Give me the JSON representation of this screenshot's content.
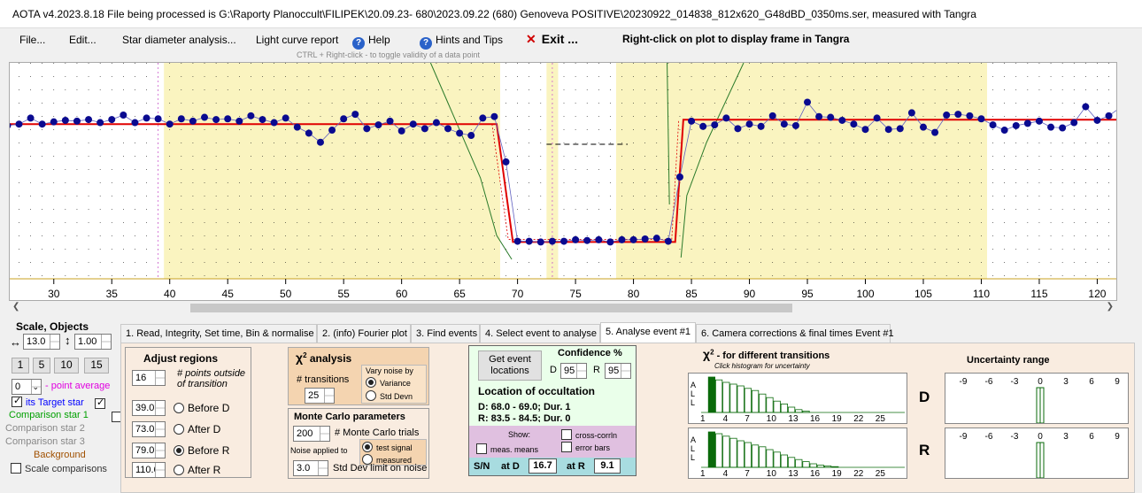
{
  "window": {
    "title": "AOTA v4.2023.8.18    File being processed is G:\\Raporty Planoccult\\FILIPEK\\20.09.23- 680\\2023.09.22 (680) Genoveva POSITIVE\\20230922_014838_812x620_G48dBD_0350ms.ser, measured with Tangra"
  },
  "menu": {
    "file": "File...",
    "edit": "Edit...",
    "star_diameter": "Star diameter analysis...",
    "light_curve": "Light curve report",
    "help": "Help",
    "hints": "Hints and Tips",
    "exit": "Exit ...",
    "right_click_hint": "Right-click on plot to display frame in Tangra",
    "ctrl_hint": "CTRL + Right-click   - to toggle validity of a data point"
  },
  "plot": {
    "x_ticks": [
      30,
      35,
      40,
      45,
      50,
      55,
      60,
      65,
      70,
      75,
      80,
      85,
      90,
      95,
      100,
      105,
      110,
      115,
      120
    ],
    "x_min": 26.2,
    "x_max": 121.8,
    "points": [
      [
        26,
        0.62
      ],
      [
        27,
        0.6
      ],
      [
        28,
        0.52
      ],
      [
        29,
        0.6
      ],
      [
        30,
        0.57
      ],
      [
        31,
        0.55
      ],
      [
        32,
        0.56
      ],
      [
        33,
        0.54
      ],
      [
        34,
        0.58
      ],
      [
        35,
        0.54
      ],
      [
        36,
        0.48
      ],
      [
        37,
        0.58
      ],
      [
        38,
        0.52
      ],
      [
        39,
        0.53
      ],
      [
        40,
        0.6
      ],
      [
        41,
        0.53
      ],
      [
        42,
        0.56
      ],
      [
        43,
        0.51
      ],
      [
        44,
        0.54
      ],
      [
        45,
        0.53
      ],
      [
        46,
        0.56
      ],
      [
        47,
        0.49
      ],
      [
        48,
        0.54
      ],
      [
        49,
        0.58
      ],
      [
        50,
        0.52
      ],
      [
        51,
        0.64
      ],
      [
        52,
        0.72
      ],
      [
        53,
        0.84
      ],
      [
        54,
        0.68
      ],
      [
        55,
        0.53
      ],
      [
        56,
        0.47
      ],
      [
        57,
        0.66
      ],
      [
        58,
        0.61
      ],
      [
        59,
        0.56
      ],
      [
        60,
        0.69
      ],
      [
        61,
        0.6
      ],
      [
        62,
        0.66
      ],
      [
        63,
        0.58
      ],
      [
        64,
        0.66
      ],
      [
        65,
        0.72
      ],
      [
        66,
        0.75
      ],
      [
        67,
        0.52
      ],
      [
        68,
        0.5
      ],
      [
        69,
        1.1
      ],
      [
        70,
        2.15
      ],
      [
        71,
        2.15
      ],
      [
        72,
        2.16
      ],
      [
        73,
        2.15
      ],
      [
        74,
        2.15
      ],
      [
        75,
        2.13
      ],
      [
        76,
        2.14
      ],
      [
        77,
        2.13
      ],
      [
        78,
        2.16
      ],
      [
        79,
        2.13
      ],
      [
        80,
        2.13
      ],
      [
        81,
        2.12
      ],
      [
        82,
        2.11
      ],
      [
        83,
        2.15
      ],
      [
        84,
        1.3
      ],
      [
        85,
        0.56
      ],
      [
        86,
        0.63
      ],
      [
        87,
        0.61
      ],
      [
        88,
        0.52
      ],
      [
        89,
        0.66
      ],
      [
        90,
        0.6
      ],
      [
        91,
        0.63
      ],
      [
        92,
        0.49
      ],
      [
        93,
        0.6
      ],
      [
        94,
        0.62
      ],
      [
        95,
        0.31
      ],
      [
        96,
        0.5
      ],
      [
        97,
        0.51
      ],
      [
        98,
        0.55
      ],
      [
        99,
        0.6
      ],
      [
        100,
        0.67
      ],
      [
        101,
        0.52
      ],
      [
        102,
        0.67
      ],
      [
        103,
        0.66
      ],
      [
        104,
        0.45
      ],
      [
        105,
        0.64
      ],
      [
        106,
        0.71
      ],
      [
        107,
        0.48
      ],
      [
        108,
        0.47
      ],
      [
        109,
        0.49
      ],
      [
        110,
        0.53
      ],
      [
        111,
        0.61
      ],
      [
        112,
        0.68
      ],
      [
        113,
        0.62
      ],
      [
        114,
        0.59
      ],
      [
        115,
        0.56
      ],
      [
        116,
        0.64
      ],
      [
        117,
        0.65
      ],
      [
        118,
        0.58
      ],
      [
        119,
        0.37
      ],
      [
        120,
        0.55
      ],
      [
        121,
        0.49
      ],
      [
        122,
        0.38
      ]
    ]
  },
  "tabs": [
    "1.  Read, Integrity, Set time, Bin & normalise",
    "2. (info)  Fourier plot",
    "3. Find events",
    "4. Select event to analyse",
    "5. Analyse event #1",
    "6. Camera corrections & final times Event #1"
  ],
  "left": {
    "scale_title": "Scale,  Objects",
    "scale_x": "13.0",
    "scale_y": "1.00",
    "zoom_buttons": [
      "1",
      "5",
      "10",
      "15"
    ],
    "point_avg_value": "0",
    "point_avg_label": "- point average",
    "target_star": "Target star",
    "target_prefix": "its",
    "comparison1": "Comparison star 1",
    "comparison2": "Comparison star 2",
    "comparison3": "Comparison star 3",
    "background": "Background",
    "scale_comparisons": "Scale comparisons",
    "colors": {
      "target": "#0000ff",
      "comp1": "#00a000",
      "comp2": "#888888",
      "comp3": "#888888",
      "background": "#a05000"
    }
  },
  "adjust": {
    "title": "Adjust regions",
    "points_outside_value": "16",
    "points_outside_label": "# points outside of transition",
    "before_d": "39.0",
    "after_d": "73.0",
    "before_r": "79.0",
    "after_r": "110.0",
    "before_d_label": "Before D",
    "after_d_label": "After D",
    "before_r_label": "Before R",
    "after_r_label": "After R"
  },
  "chi2": {
    "title": "χ",
    "title_sup": "2",
    "title_rest": "analysis",
    "transitions_label": "# transitions",
    "transitions_value": "25",
    "vary_label": "Vary noise by",
    "variance": "Variance",
    "std_devn": "Std Devn"
  },
  "monte_carlo": {
    "title": "Monte Carlo parameters",
    "trials_value": "200",
    "trials_label": "# Monte Carlo trials",
    "noise_label": "Noise applied to",
    "test_signal": "test signal",
    "measured": "measured",
    "std_value": "3.0",
    "std_label": "Std Dev limit on noise"
  },
  "location": {
    "button": "Get event locations",
    "confidence_title": "Confidence %",
    "d_label": "D",
    "d_value": "95",
    "r_label": "R",
    "r_value": "95",
    "title": "Location of occultation",
    "d_line": "D: 68.0 - 69.0; Dur. 1",
    "r_line": "R: 83.5 - 84.5; Dur. 0",
    "show": "Show:",
    "cross_corrln": "cross-corrln",
    "meas_means": "meas. means",
    "error_bars": "error bars",
    "sn_label": "S/N",
    "at_d": "at D",
    "sn_d": "16.7",
    "at_r": "at R",
    "sn_r": "9.1"
  },
  "chi2_transitions": {
    "title": "χ",
    "title_sup": "2",
    "title_rest": " - for different transitions",
    "hint": "Click histogram for uncertainty",
    "ticks": [
      "1",
      "4",
      "7",
      "10",
      "13",
      "16",
      "19",
      "22",
      "25"
    ],
    "axis_letters": [
      "A",
      "L",
      "L"
    ],
    "d_label": "D",
    "r_label": "R",
    "d_hist": [
      0.0,
      1.0,
      0.92,
      0.85,
      0.8,
      0.75,
      0.68,
      0.62,
      0.52,
      0.42,
      0.32,
      0.24,
      0.15,
      0.08,
      0.04
    ],
    "r_hist": [
      0.0,
      1.0,
      0.95,
      0.88,
      0.82,
      0.75,
      0.7,
      0.63,
      0.58,
      0.5,
      0.43,
      0.35,
      0.28,
      0.22,
      0.16,
      0.1,
      0.06,
      0.04,
      0.02
    ]
  },
  "uncertainty": {
    "title": "Uncertainty range",
    "ticks": [
      "-9",
      "-6",
      "-3",
      "0",
      "3",
      "6",
      "9"
    ]
  }
}
